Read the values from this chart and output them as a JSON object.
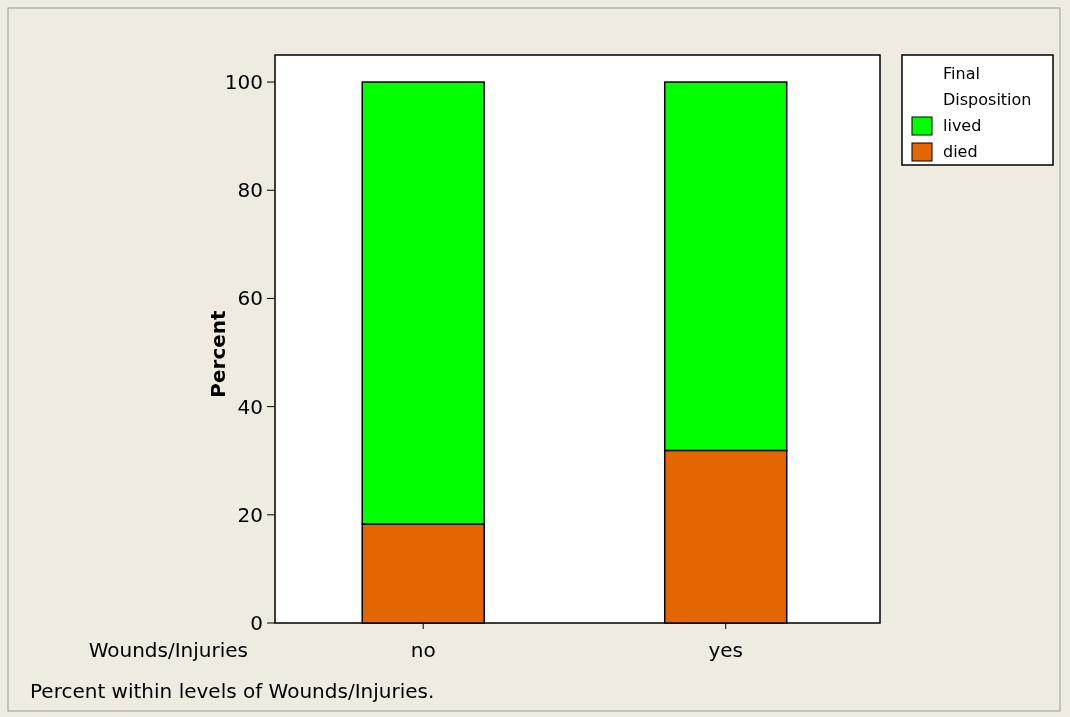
{
  "chart_data": {
    "type": "bar",
    "stacked": true,
    "ylabel": "Percent",
    "xlabel": "Wounds/Injuries",
    "legend_title": "Final Disposition",
    "categories": [
      "no",
      "yes"
    ],
    "series": [
      {
        "name": "died",
        "color": "#e36600",
        "values": [
          18.3,
          31.9
        ]
      },
      {
        "name": "lived",
        "color": "#00ff00",
        "values": [
          81.7,
          68.1
        ]
      }
    ],
    "ylim": [
      0,
      105
    ],
    "yticks": [
      0,
      20,
      40,
      60,
      80,
      100
    ],
    "grid": false,
    "legend": "top right",
    "annotations": [
      "Percent within levels of Wounds/Injuries."
    ]
  }
}
